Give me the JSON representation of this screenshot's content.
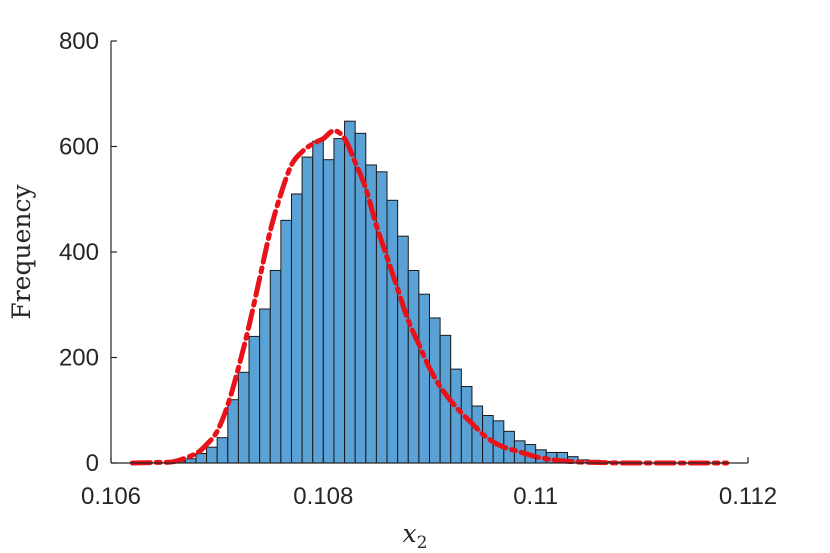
{
  "chart_data": {
    "type": "bar",
    "title": "",
    "xlabel": "x",
    "xlabel_subscript": "2",
    "ylabel": "Frequency",
    "xlim": [
      0.106,
      0.112
    ],
    "ylim": [
      0,
      800
    ],
    "xticks": [
      "0.106",
      "0.108",
      "0.11",
      "0.112"
    ],
    "yticks": [
      "0",
      "200",
      "400",
      "600",
      "800"
    ],
    "grid": false,
    "bin_edges": [
      0.1066,
      0.1067,
      0.1068,
      0.1069,
      0.107,
      0.1071,
      0.1072,
      0.1073,
      0.1074,
      0.1075,
      0.1076,
      0.1077,
      0.1078,
      0.1079,
      0.108,
      0.1081,
      0.1082,
      0.1083,
      0.1084,
      0.1085,
      0.1086,
      0.1087,
      0.1088,
      0.1089,
      0.109,
      0.1091,
      0.1092,
      0.1093,
      0.1094,
      0.1095,
      0.1096,
      0.1097,
      0.1098,
      0.1099,
      0.11,
      0.1101,
      0.1102,
      0.1103,
      0.1104,
      0.1105,
      0.1106,
      0.1107,
      0.1108
    ],
    "counts": [
      3,
      8,
      18,
      30,
      48,
      120,
      172,
      240,
      292,
      365,
      460,
      510,
      580,
      610,
      575,
      615,
      648,
      625,
      565,
      552,
      498,
      430,
      365,
      320,
      275,
      242,
      178,
      145,
      108,
      90,
      80,
      60,
      42,
      35,
      25,
      20,
      20,
      12,
      6,
      5,
      3,
      2
    ],
    "fit_curve": {
      "x": [
        0.1062,
        0.1064,
        0.1066,
        0.1068,
        0.1069,
        0.107,
        0.1071,
        0.1072,
        0.1073,
        0.1074,
        0.1075,
        0.1076,
        0.1077,
        0.1078,
        0.1079,
        0.108,
        0.1081,
        0.1082,
        0.1083,
        0.1084,
        0.1085,
        0.1086,
        0.1087,
        0.1088,
        0.1089,
        0.109,
        0.1091,
        0.1092,
        0.1093,
        0.1094,
        0.1095,
        0.1096,
        0.1097,
        0.1098,
        0.1099,
        0.11,
        0.1101,
        0.1102,
        0.1104,
        0.1106,
        0.1108,
        0.111,
        0.1112,
        0.1114,
        0.1116,
        0.1118
      ],
      "y": [
        0,
        1,
        3,
        18,
        35,
        60,
        110,
        180,
        260,
        350,
        440,
        510,
        565,
        590,
        605,
        615,
        630,
        615,
        570,
        520,
        450,
        390,
        330,
        270,
        225,
        180,
        145,
        118,
        95,
        75,
        55,
        40,
        30,
        24,
        18,
        12,
        8,
        5,
        2,
        1,
        0,
        0,
        0,
        0,
        0,
        0
      ],
      "color": "#e8131a",
      "style": "dash-dot"
    },
    "bar_color": "#5aa1d6"
  }
}
